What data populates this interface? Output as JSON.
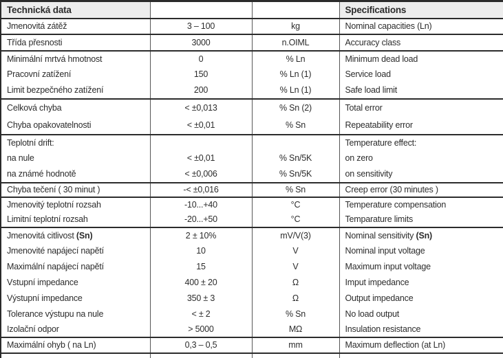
{
  "table": {
    "header": {
      "czech": "Technická data",
      "english": "Specifications"
    },
    "columns": [
      "czech_label",
      "value",
      "unit",
      "english_label"
    ],
    "colors": {
      "header_bg": "#ededed",
      "border_dark": "#2b2b2b",
      "border_thin": "#555555",
      "text": "#2c2c2c",
      "page_bg": "#ffffff"
    },
    "groups": [
      {
        "rows": [
          {
            "cz": "Jmenovitá zátěž",
            "value": "3 – 100",
            "unit": "kg",
            "en": "Nominal capacities (Ln)"
          }
        ]
      },
      {
        "rows": [
          {
            "cz": "Třída přesnosti",
            "value": "3000",
            "unit": "n.OIML",
            "en": "Accuracy class"
          }
        ]
      },
      {
        "rows": [
          {
            "cz": "Minimální mrtvá hmotnost",
            "value": "0",
            "unit": "% Ln",
            "en": "Minimum dead load"
          },
          {
            "cz": "Pracovní zatížení",
            "value": "150",
            "unit": "% Ln (1)",
            "en": "Service load"
          },
          {
            "cz": "Limit bezpečného zatížení",
            "value": "200",
            "unit": "% Ln (1)",
            "en": "Safe load limit"
          }
        ]
      },
      {
        "rows": [
          {
            "cz": "Celková chyba",
            "value": "< ±0,013",
            "unit": "% Sn (2)",
            "en": "Total error"
          },
          {
            "cz": "Chyba opakovatelnosti",
            "value": "< ±0,01",
            "unit": "% Sn",
            "en": "Repeatability error"
          }
        ]
      },
      {
        "rows": [
          {
            "cz": "Teplotní drift:",
            "value": "",
            "unit": "",
            "en": "Temperature effect:"
          },
          {
            "cz": "na nule",
            "value": "< ±0,01",
            "unit": "% Sn/5K",
            "en": "on zero"
          },
          {
            "cz": "na známé hodnotě",
            "value": "< ±0,006",
            "unit": "% Sn/5K",
            "en": "on sensitivity"
          }
        ]
      },
      {
        "rows": [
          {
            "cz": "Chyba tečení ( 30 minut )",
            "value": "-< ±0,016",
            "unit": "% Sn",
            "en": "Creep error (30 minutes )"
          }
        ]
      },
      {
        "rows": [
          {
            "cz": "Jmenovitý teplotní rozsah",
            "value": "-10...+40",
            "unit": "°C",
            "en": "Temperature compensation"
          },
          {
            "cz": "Limitní teplotní rozsah",
            "value": "-20...+50",
            "unit": "°C",
            "en": "Temparature limits"
          }
        ]
      },
      {
        "rows": [
          {
            "cz": "Jmenovitá citlivost ",
            "cz_bold": "(Sn)",
            "value": "2 ± 10%",
            "unit": "mV/V(3)",
            "en": "Nominal sensitivity ",
            "en_bold": "(Sn)"
          },
          {
            "cz": "Jmenovité napájecí napětí",
            "value": "10",
            "unit": "V",
            "en": "Nominal input voltage"
          },
          {
            "cz": "Maximální napájecí napětí",
            "value": "15",
            "unit": "V",
            "en": "Maximum input voltage"
          },
          {
            "cz": "Vstupní impedance",
            "value": "400 ± 20",
            "unit": "Ω",
            "en": "Imput impedance"
          },
          {
            "cz": "Výstupní impedance",
            "value": "350 ± 3",
            "unit": "Ω",
            "en": "Output impedance"
          },
          {
            "cz": "Tolerance výstupu na nule",
            "value": "< ± 2",
            "unit": "% Sn",
            "en": "No load output"
          },
          {
            "cz": "Izolační odpor",
            "value": "> 5000",
            "unit": "MΩ",
            "en": "Insulation resistance"
          }
        ]
      },
      {
        "rows": [
          {
            "cz": "Maximální ohyb ( na Ln)",
            "value": "0,3 – 0,5",
            "unit": "mm",
            "en": "Maximum deflection (at Ln)"
          }
        ]
      }
    ]
  }
}
